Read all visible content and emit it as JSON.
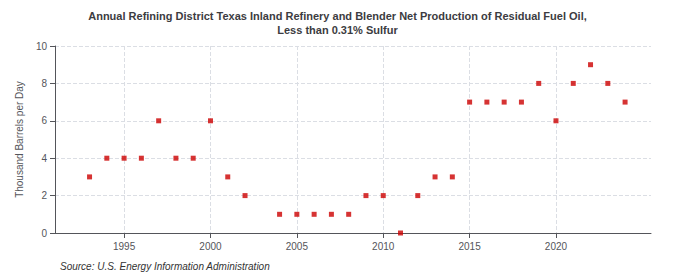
{
  "chart_data": {
    "type": "scatter",
    "title": "Annual Refining District Texas Inland Refinery and Blender Net Production of Residual Fuel Oil,\nLess than 0.31% Sulfur",
    "y_label": "Thousand Barrels per Day",
    "annotations": [
      "Source: U.S. Energy Information Administration"
    ],
    "x": [
      1993,
      1994,
      1995,
      1996,
      1997,
      1998,
      1999,
      2000,
      2001,
      2002,
      2004,
      2005,
      2006,
      2007,
      2008,
      2009,
      2010,
      2011,
      2012,
      2013,
      2014,
      2015,
      2016,
      2017,
      2018,
      2019,
      2020,
      2021,
      2022,
      2023,
      2024
    ],
    "values": [
      3,
      4,
      4,
      4,
      6,
      4,
      4,
      6,
      3,
      2,
      1,
      1,
      1,
      1,
      1,
      2,
      2,
      0,
      2,
      3,
      3,
      7,
      7,
      7,
      7,
      8,
      6,
      8,
      9,
      8,
      7
    ],
    "color": "#cc0000",
    "marker": "square",
    "xlim": [
      1991.0,
      2025.5
    ],
    "xticks": [
      1995,
      2000,
      2005,
      2010,
      2015,
      2020
    ],
    "ylim": [
      0,
      10
    ],
    "yticks": [
      0,
      2,
      4,
      6,
      8,
      10
    ],
    "grid": true
  }
}
